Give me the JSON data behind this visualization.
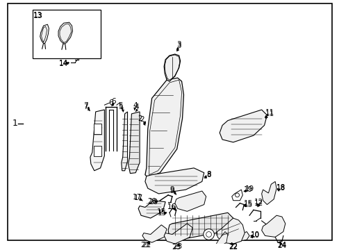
{
  "bg_color": "#ffffff",
  "border_color": "#000000",
  "line_color": "#000000",
  "text_color": "#000000",
  "fig_width": 4.89,
  "fig_height": 3.6,
  "dpi": 100
}
